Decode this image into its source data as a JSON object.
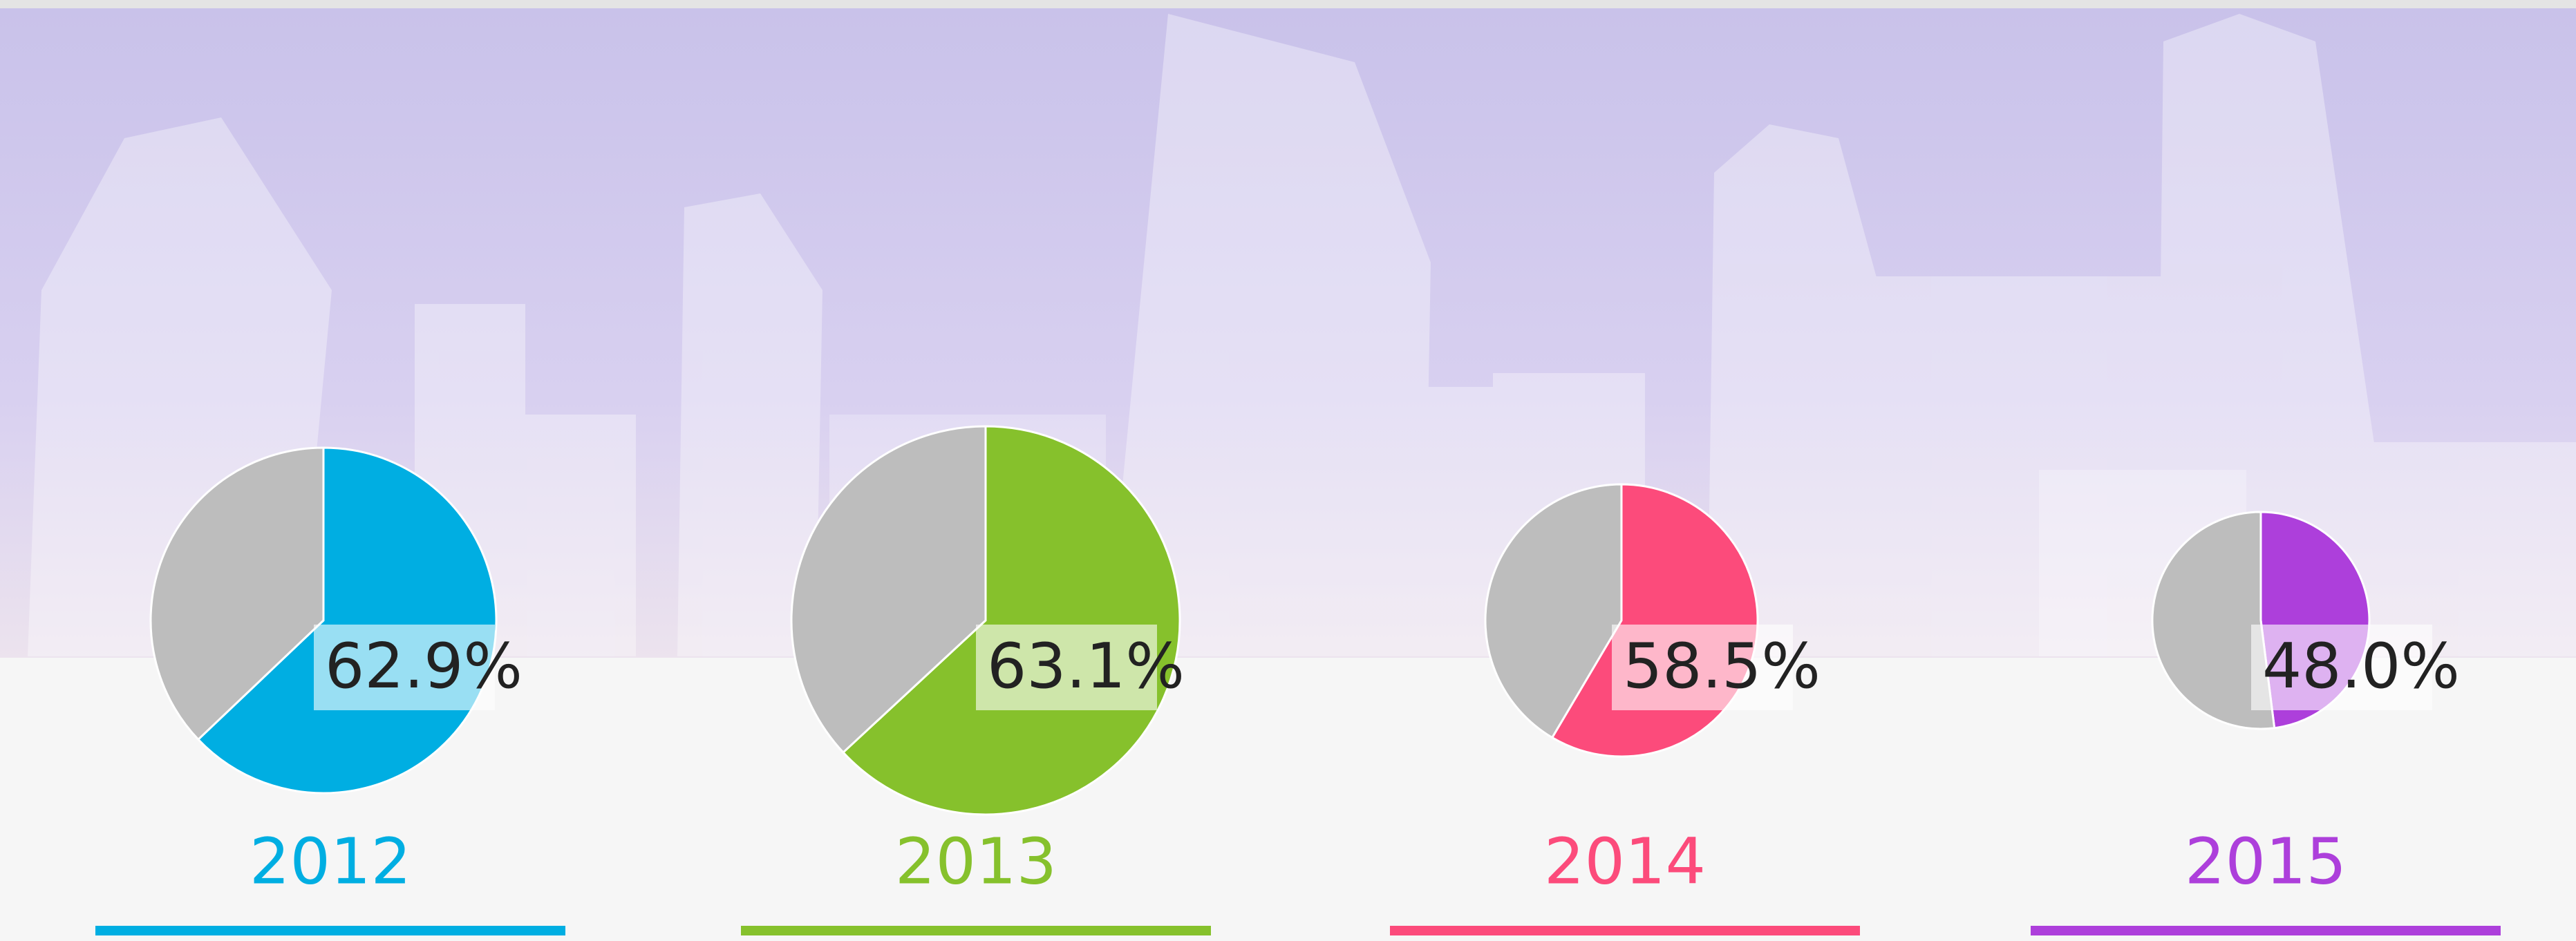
{
  "chart_data": [
    {
      "type": "pie",
      "title": "2012",
      "values": [
        62.9,
        37.1
      ],
      "value_labels": [
        "62.9%",
        null
      ],
      "colors": [
        "#00aee2",
        "#bdbdbd"
      ]
    },
    {
      "type": "pie",
      "title": "2013",
      "values": [
        63.1,
        36.9
      ],
      "value_labels": [
        "63.1%",
        null
      ],
      "colors": [
        "#86c12c",
        "#bdbdbd"
      ]
    },
    {
      "type": "pie",
      "title": "2014",
      "values": [
        58.5,
        41.5
      ],
      "value_labels": [
        "58.5%",
        null
      ],
      "colors": [
        "#fc4b7b",
        "#bdbdbd"
      ]
    },
    {
      "type": "pie",
      "title": "2015",
      "values": [
        48.0,
        52.0
      ],
      "value_labels": [
        "48.0%",
        null
      ],
      "colors": [
        "#ad3fdb",
        "#bdbdbd"
      ]
    }
  ]
}
